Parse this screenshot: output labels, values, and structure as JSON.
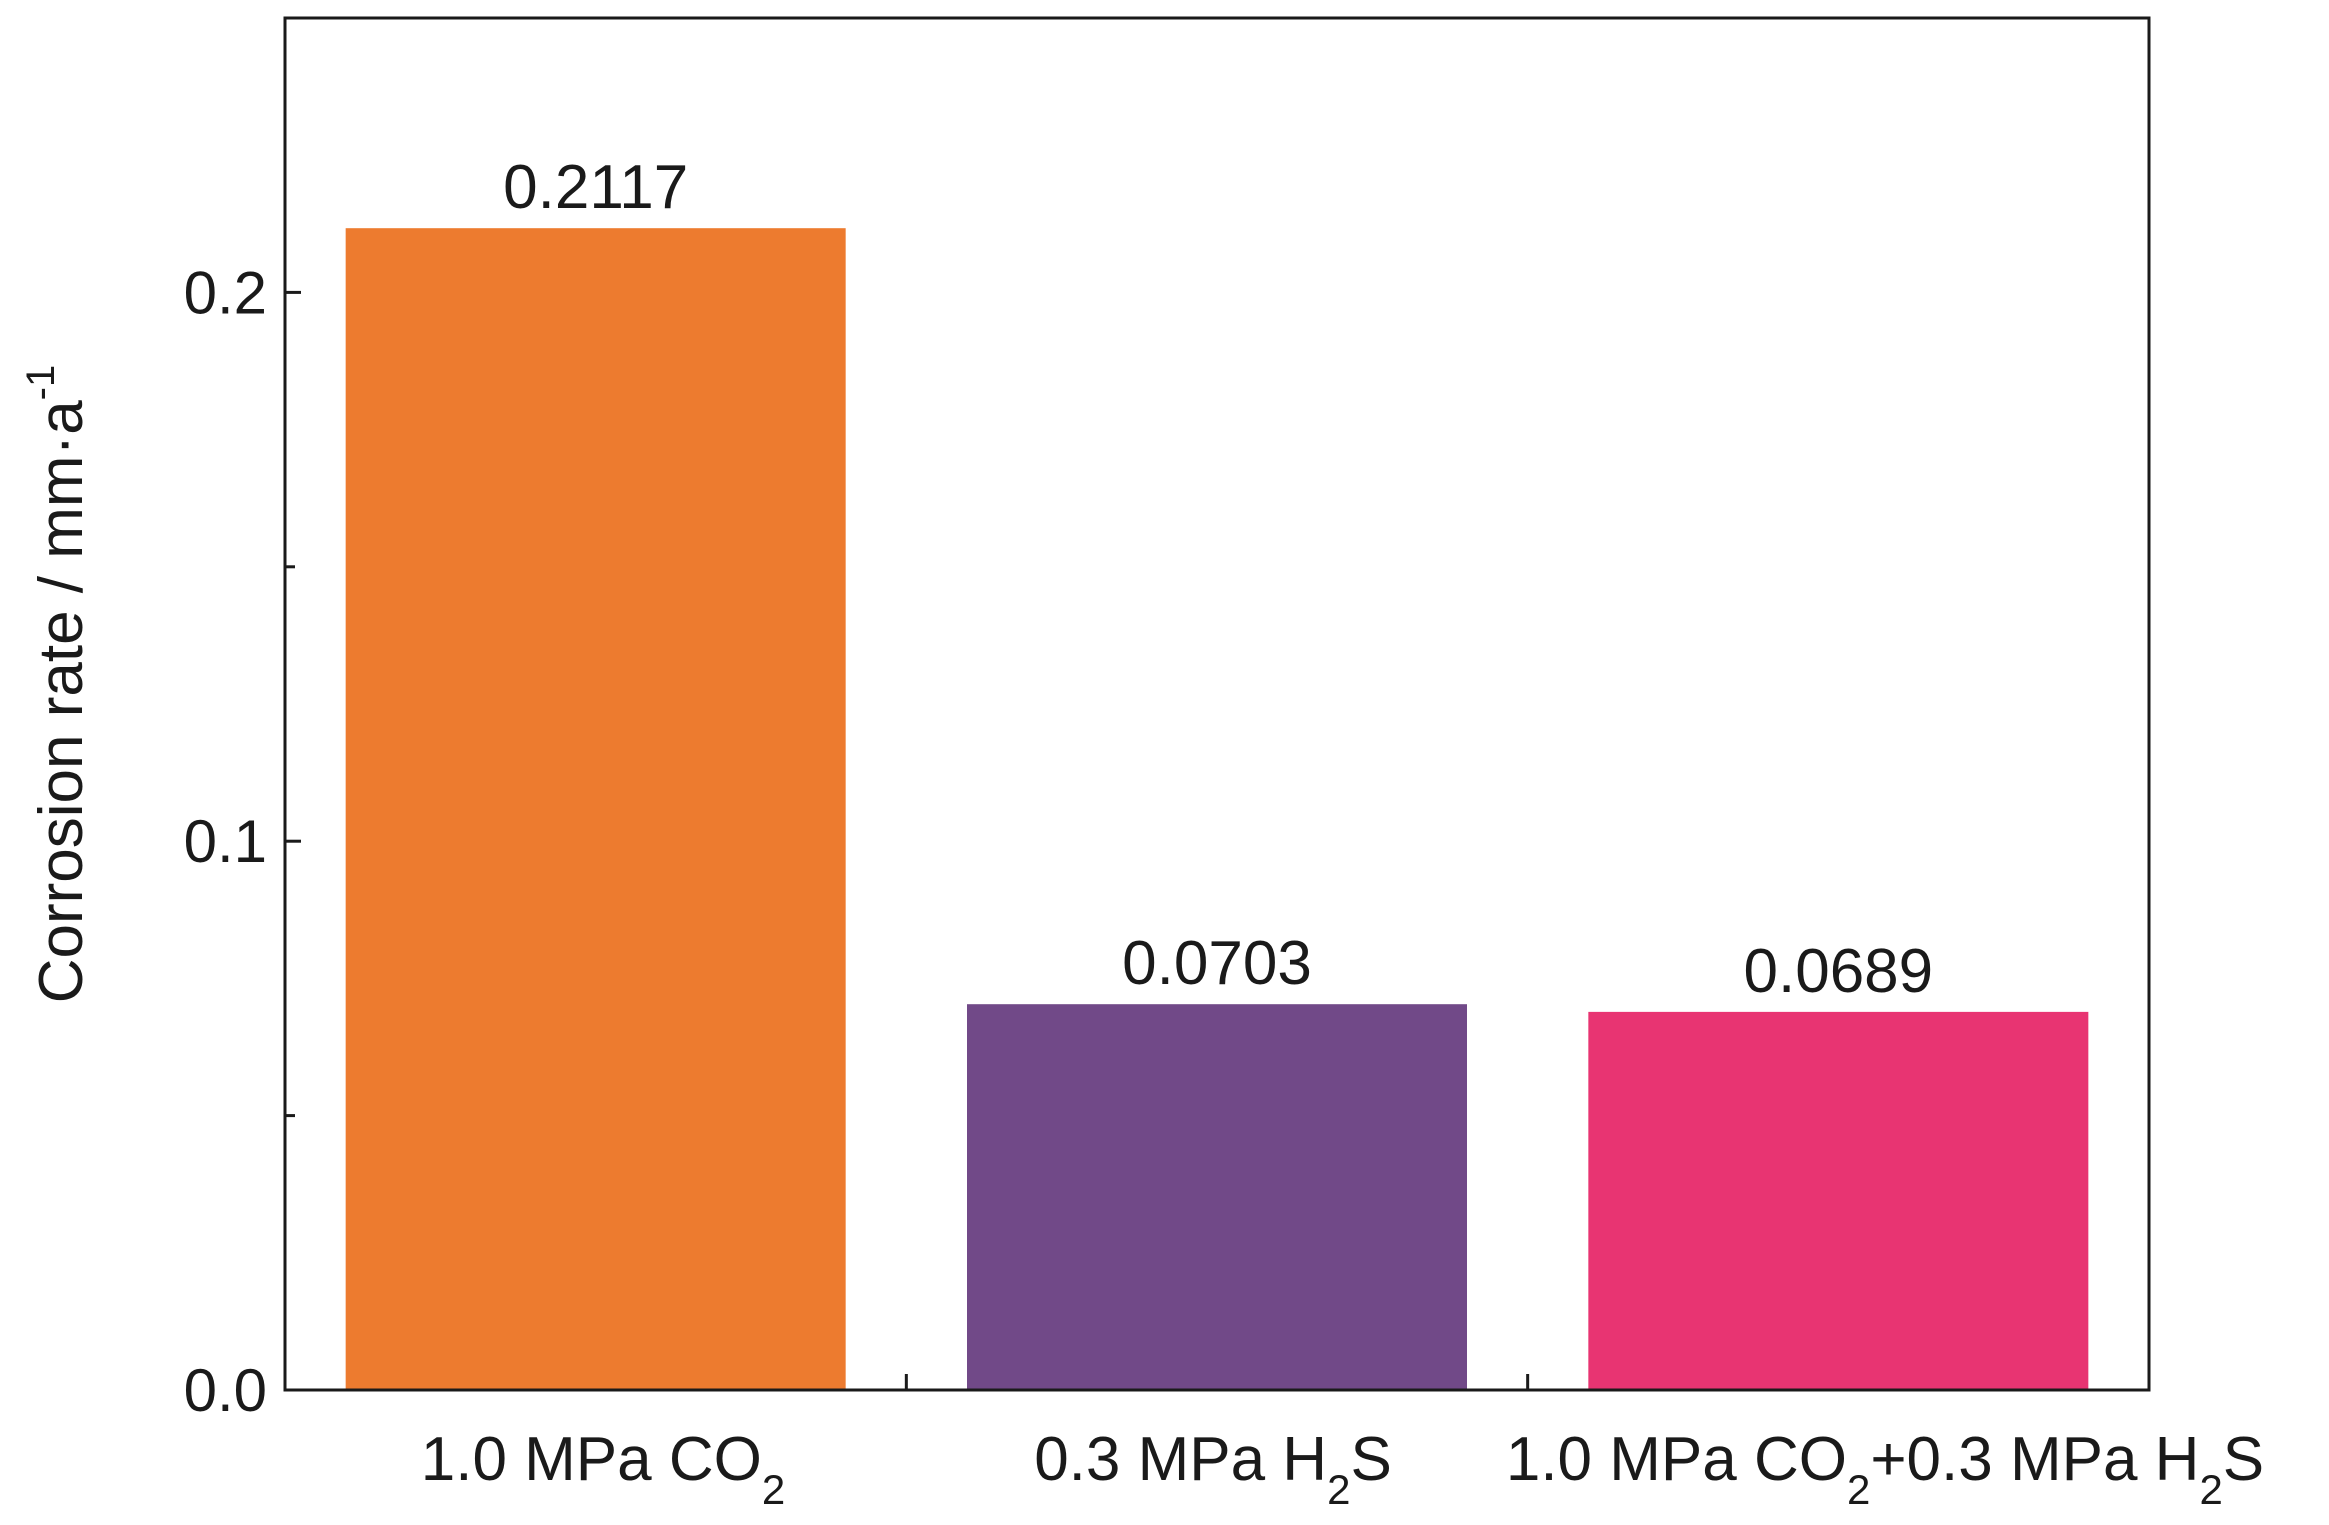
{
  "chart_data": {
    "type": "bar",
    "categories": [
      {
        "base": "1.0 MPa CO",
        "sub": "2",
        "rest": "",
        "sub2": ""
      },
      {
        "base": "0.3 MPa H",
        "sub": "2",
        "rest": "S",
        "sub2": ""
      },
      {
        "base": "1.0 MPa CO",
        "sub": "2",
        "rest": "+0.3 MPa H",
        "sub2": "2",
        "rest2": "S"
      }
    ],
    "values": [
      0.2117,
      0.0703,
      0.0689
    ],
    "value_labels": [
      "0.2117",
      "0.0703",
      "0.0689"
    ],
    "colors": [
      "#ED7B2F",
      "#714988",
      "#E83472"
    ],
    "ylabel": {
      "base": "Corrosion rate / mm·a",
      "sup": "-1"
    },
    "ylim": [
      0,
      0.25
    ],
    "yticks": [
      0.0,
      0.1,
      0.2
    ],
    "ytick_labels": [
      "0.0",
      "0.1",
      "0.2"
    ],
    "yminor_ticks": [
      0.05,
      0.15
    ],
    "grid": false,
    "legend": "none"
  }
}
